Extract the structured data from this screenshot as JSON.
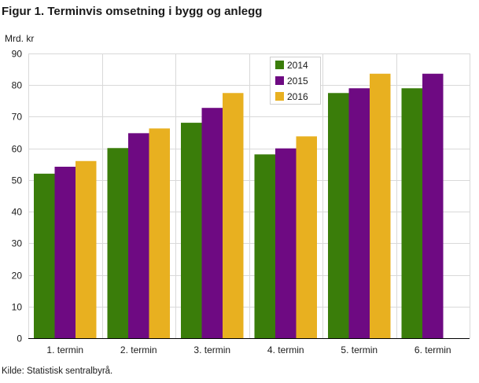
{
  "title": "Figur 1. Terminvis omsetning i bygg og anlegg",
  "source": "Kilde: Statistisk sentralbyrå.",
  "chart_data": {
    "type": "bar",
    "ylabel": "Mrd. kr",
    "ylim": [
      0,
      90
    ],
    "yticks": [
      0,
      10,
      20,
      30,
      40,
      50,
      60,
      70,
      80,
      90
    ],
    "categories": [
      "1. termin",
      "2. termin",
      "3. termin",
      "4. termin",
      "5. termin",
      "6. termin"
    ],
    "series": [
      {
        "name": "2014",
        "color": "#3a7d0a",
        "values": [
          52,
          60.1,
          68.1,
          58.1,
          77.5,
          79
        ]
      },
      {
        "name": "2015",
        "color": "#6e0a82",
        "values": [
          54.2,
          64.8,
          72.8,
          60,
          79,
          83.6
        ]
      },
      {
        "name": "2016",
        "color": "#e8b020",
        "values": [
          56,
          66.3,
          77.5,
          63.8,
          83.6,
          null
        ]
      }
    ],
    "grid": true,
    "legend_position": "top-right"
  }
}
